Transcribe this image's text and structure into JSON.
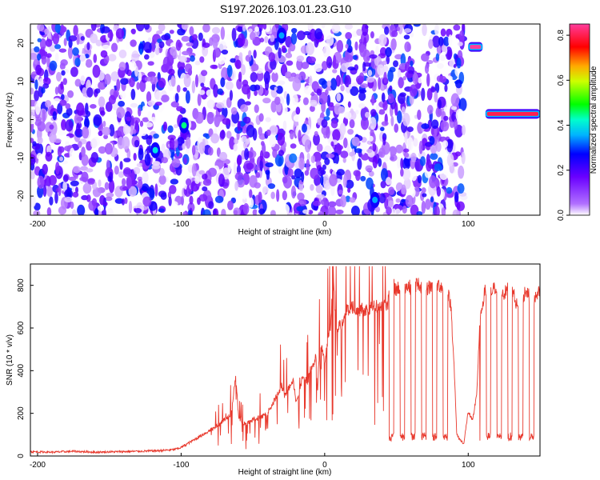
{
  "title": "S197.2026.103.01.23.G10",
  "chart_data": [
    {
      "type": "heatmap",
      "title": "S197.2026.103.01.23.G10",
      "xlabel": "Height of straight line (km)",
      "ylabel": "Frequency (Hz)",
      "xlim": [
        -205,
        150
      ],
      "ylim": [
        -25,
        25
      ],
      "x_ticks": [
        -200,
        -100,
        0,
        100
      ],
      "y_ticks": [
        -20,
        -10,
        0,
        10,
        20
      ],
      "colorbar": {
        "label": "Normalized spectral amplitude",
        "range": [
          0,
          0.85
        ],
        "ticks": [
          "0.0",
          "0.2",
          "0.4",
          "0.6",
          "0.8"
        ],
        "colormap": [
          "#ffffff",
          "#7a00ff",
          "#0000ff",
          "#00ffff",
          "#00ff00",
          "#ffff00",
          "#ff8800",
          "#ff0000",
          "#ff3c9c"
        ]
      },
      "background": "scattered low-amplitude noise (0.0-0.3) across -205 to 100 km, blank 100-150 km except strong lines",
      "features": [
        {
          "label": "line",
          "x_range": [
            100,
            110
          ],
          "frequency": 19,
          "amplitude": 0.85
        },
        {
          "label": "line",
          "x_range": [
            112,
            150
          ],
          "frequency": 1.5,
          "amplitude": 0.8
        },
        {
          "label": "blob",
          "x": -98,
          "frequency": -1.5,
          "amplitude": 0.45
        },
        {
          "label": "blob",
          "x": -118,
          "frequency": -8,
          "amplitude": 0.4
        },
        {
          "label": "blob",
          "x": -30,
          "frequency": 22,
          "amplitude": 0.35
        },
        {
          "label": "blob",
          "x": 35,
          "frequency": -21,
          "amplitude": 0.35
        }
      ],
      "grid": false
    },
    {
      "type": "line",
      "xlabel": "Height of straight line (km)",
      "ylabel": "SNR (10 * v/v)",
      "xlim": [
        -205,
        150
      ],
      "ylim": [
        0,
        900
      ],
      "x_ticks": [
        -200,
        -100,
        0,
        100
      ],
      "y_ticks": [
        0,
        200,
        400,
        600,
        800
      ],
      "series_color": "#e8382c",
      "grid": false,
      "series": [
        {
          "x": [
            -205,
            -190,
            -175,
            -160,
            -145,
            -130,
            -115,
            -105,
            -100,
            -95,
            -90,
            -85,
            -80,
            -75,
            -70,
            -65,
            -62,
            -60,
            -58,
            -55,
            -50,
            -45,
            -40,
            -35,
            -32,
            -30,
            -28,
            -25,
            -22,
            -20,
            -18,
            -15,
            -12,
            -10,
            -8,
            -6,
            -5,
            -4,
            -2,
            0,
            2,
            3,
            4,
            5,
            6,
            7,
            8,
            9,
            10,
            12,
            15,
            20,
            25,
            30,
            35,
            40,
            44,
            45,
            46,
            48,
            50,
            55,
            60,
            65,
            70,
            75,
            80,
            85,
            88,
            90,
            92,
            95,
            97,
            100,
            103,
            106,
            108,
            110,
            112,
            115,
            120,
            125,
            130,
            135,
            140,
            145,
            150
          ],
          "y": [
            20,
            18,
            22,
            18,
            20,
            22,
            25,
            30,
            40,
            60,
            80,
            100,
            120,
            140,
            170,
            200,
            380,
            180,
            160,
            150,
            170,
            180,
            200,
            260,
            300,
            330,
            280,
            320,
            360,
            260,
            300,
            380,
            340,
            400,
            420,
            480,
            300,
            460,
            500,
            440,
            520,
            580,
            600,
            720,
            880,
            700,
            620,
            600,
            620,
            610,
            680,
            700,
            680,
            690,
            700,
            710,
            700,
            820,
            760,
            800,
            780,
            800,
            790,
            810,
            780,
            800,
            800,
            790,
            700,
            450,
            100,
            70,
            60,
            210,
            160,
            300,
            600,
            720,
            780,
            760,
            800,
            760,
            800,
            680,
            780,
            720,
            770
          ]
        }
      ]
    }
  ]
}
